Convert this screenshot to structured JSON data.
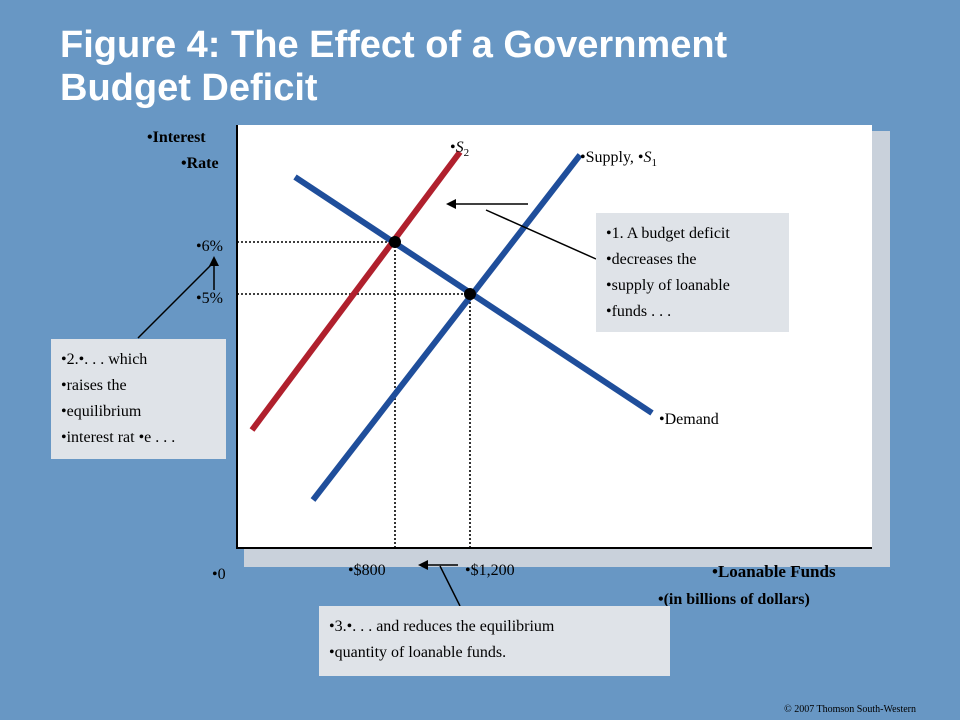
{
  "title": {
    "line1": "Figure 4: The Effect of a Government",
    "line2": "Budget Deficit"
  },
  "axes": {
    "y_label_line1": "•Interest",
    "y_label_line2": "•Rate",
    "x_label_line1": "•Loanable Funds",
    "x_label_line2": "•(in billions of dollars)",
    "origin": "•0",
    "y_ticks": [
      "•6%",
      "•5%"
    ],
    "x_ticks": [
      "•$800",
      "•$1,200"
    ]
  },
  "curves": {
    "s2_bullet": "•",
    "s2_letter": "S",
    "s2_sub": "2",
    "s1_prefix": "•Supply, •",
    "s1_letter": "S",
    "s1_sub": "1",
    "demand": "•Demand"
  },
  "callouts": {
    "c1": [
      "•1. A budget deficit",
      "•decreases the",
      "•supply of loanable",
      "•funds . . ."
    ],
    "c2": [
      "•2.•. . . which",
      "•raises the",
      "•equilibrium",
      "•interest rat •e . . ."
    ],
    "c3": [
      "•3.•. . . and reduces the equilibrium",
      "•quantity of loanable funds."
    ]
  },
  "copyright": "© 2007 Thomson South-Western",
  "colors": {
    "background": "#6897c4",
    "supply_s1": "#1f4e9b",
    "supply_s2": "#b0202d",
    "demand": "#1f4e9b"
  },
  "chart_data": {
    "type": "line",
    "xlabel": "Loanable Funds (in billions of dollars)",
    "ylabel": "Interest Rate",
    "x_ticks": [
      800,
      1200
    ],
    "y_ticks": [
      5,
      6
    ],
    "series": [
      {
        "name": "Supply, S1"
      },
      {
        "name": "S2"
      },
      {
        "name": "Demand"
      }
    ],
    "equilibria": [
      {
        "x": 1200,
        "y": 5
      },
      {
        "x": 800,
        "y": 6
      }
    ]
  }
}
